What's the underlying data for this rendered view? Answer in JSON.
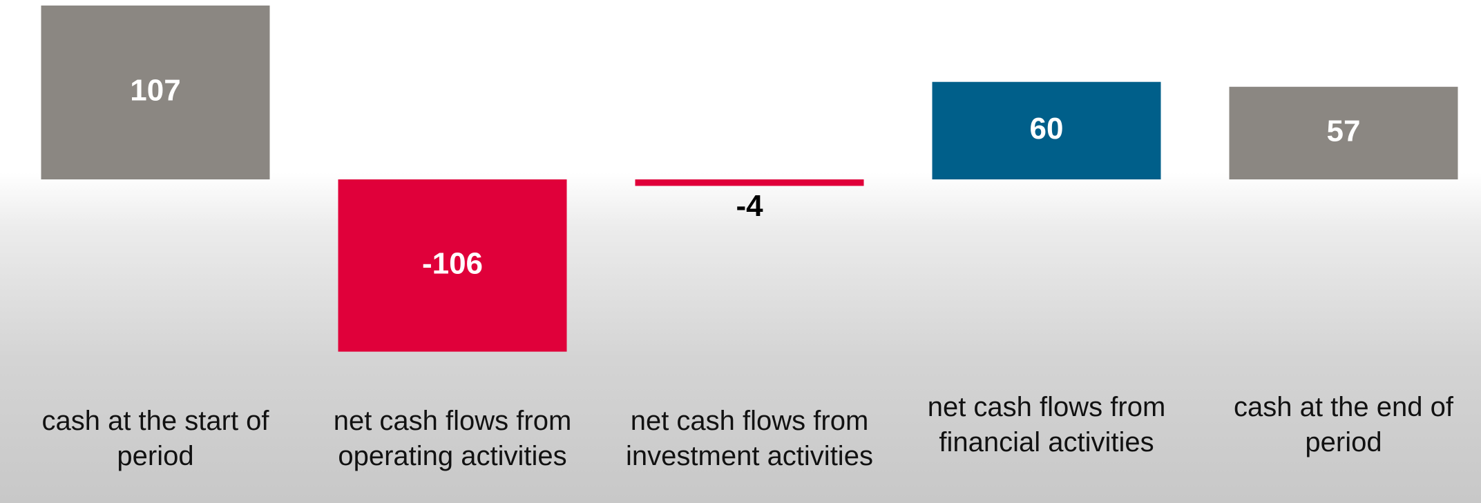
{
  "chart_data": {
    "type": "bar",
    "categories": [
      "cash at the start of period",
      "net cash flows from operating activities",
      "net cash flows from investment activities",
      "net cash flows from financial activities",
      "cash at the end of period"
    ],
    "values": [
      107,
      -106,
      -4,
      60,
      57
    ],
    "colors": [
      "#8b8782",
      "#e0003a",
      "#e0003a",
      "#005f8a",
      "#8b8782"
    ]
  }
}
